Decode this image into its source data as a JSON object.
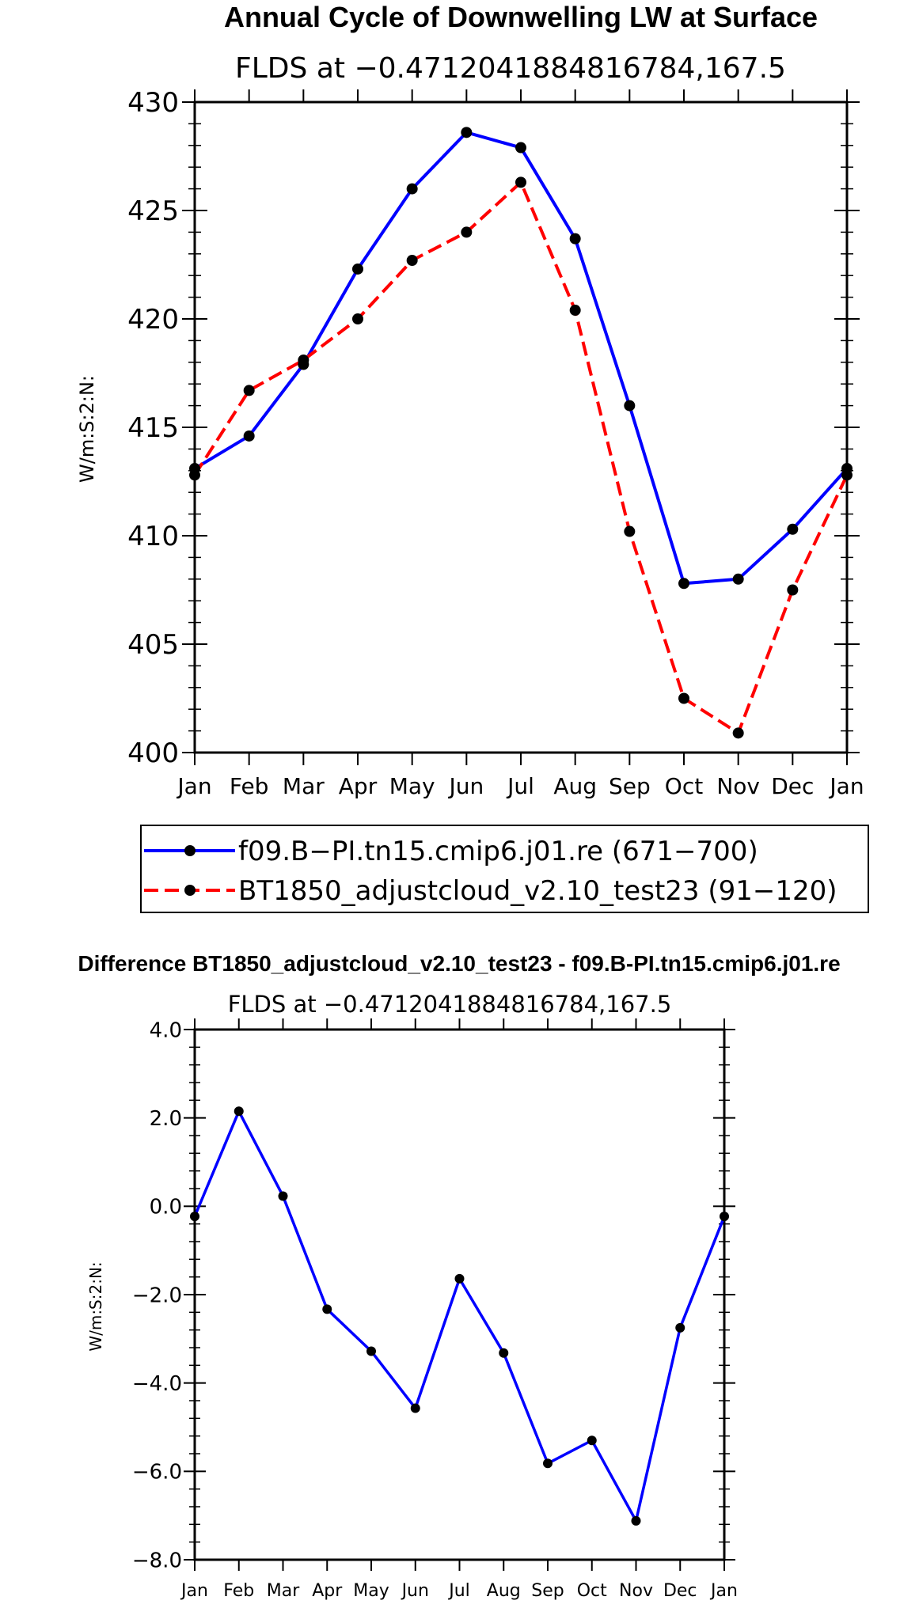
{
  "chart_data": [
    {
      "type": "line",
      "title": "Annual Cycle of Downwelling LW at Surface",
      "subtitle": "FLDS at −0.4712041884816784,167.5",
      "ylabel": "W/m:S:2:N:",
      "xlabel": "",
      "categories": [
        "Jan",
        "Feb",
        "Mar",
        "Apr",
        "May",
        "Jun",
        "Jul",
        "Aug",
        "Sep",
        "Oct",
        "Nov",
        "Dec",
        "Jan"
      ],
      "ylim": [
        400,
        430
      ],
      "yticks": [
        400,
        405,
        410,
        415,
        420,
        425,
        430
      ],
      "series": [
        {
          "name": "f09.B−PI.tn15.cmip6.j01.re (671−700)",
          "color": "#0000ff",
          "dash": "solid",
          "values": [
            413.1,
            414.6,
            417.9,
            422.3,
            426.0,
            428.6,
            427.9,
            423.7,
            416.0,
            407.8,
            408.0,
            410.3,
            413.1
          ]
        },
        {
          "name": "BT1850_adjustcloud_v2.10_test23 (91−120)",
          "color": "#ff0000",
          "dash": "dashed",
          "values": [
            412.8,
            416.7,
            418.1,
            420.0,
            422.7,
            424.0,
            426.3,
            420.4,
            410.2,
            402.5,
            400.9,
            407.5,
            412.8
          ]
        }
      ]
    },
    {
      "type": "line",
      "title": "Difference BT1850_adjustcloud_v2.10_test23 - f09.B-PI.tn15.cmip6.j01.re",
      "subtitle": "FLDS at −0.4712041884816784,167.5",
      "ylabel": "W/m:S:2:N:",
      "xlabel": "",
      "categories": [
        "Jan",
        "Feb",
        "Mar",
        "Apr",
        "May",
        "Jun",
        "Jul",
        "Aug",
        "Sep",
        "Oct",
        "Nov",
        "Dec",
        "Jan"
      ],
      "ylim": [
        -8,
        4
      ],
      "yticks": [
        "−8.0",
        "−6.0",
        "−4.0",
        "−2.0",
        "0.0",
        "2.0",
        "4.0"
      ],
      "series": [
        {
          "name": "Difference",
          "color": "#0000ff",
          "dash": "solid",
          "values": [
            -0.23,
            2.15,
            0.23,
            -2.33,
            -3.28,
            -4.57,
            -1.64,
            -3.32,
            -5.82,
            -5.3,
            -7.12,
            -2.75,
            -0.23
          ]
        }
      ]
    }
  ]
}
